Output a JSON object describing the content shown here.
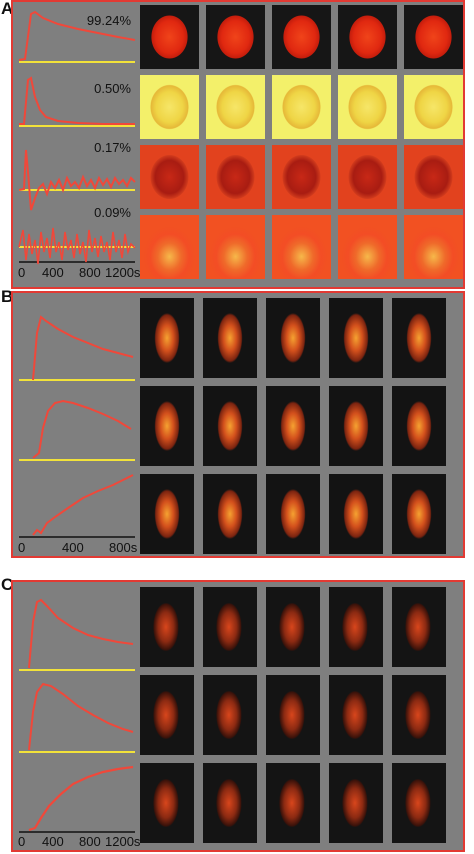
{
  "panels": {
    "A": {
      "letter": "A",
      "percentages": [
        "99.24%",
        "0.50%",
        "0.17%",
        "0.09%"
      ],
      "x_ticks": [
        "0",
        "400",
        "800",
        "1200s"
      ]
    },
    "B": {
      "letter": "B",
      "x_ticks": [
        "0",
        "400",
        "800s"
      ]
    },
    "C": {
      "letter": "C",
      "x_ticks": [
        "0",
        "400",
        "800",
        "1200s"
      ]
    }
  },
  "colors": {
    "frame": "#e23a33",
    "curve": "#f0483a",
    "baseline": "#f2e23a",
    "plot_bg": "#7f7f7f",
    "map_bg": "#141414"
  }
}
